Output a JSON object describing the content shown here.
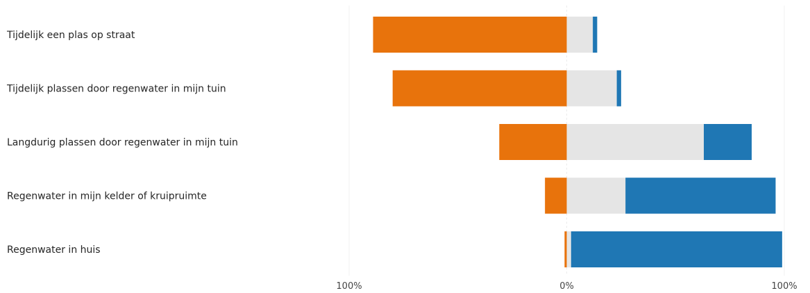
{
  "chart_data": {
    "type": "bar",
    "orientation": "horizontal",
    "stacked": "diverging",
    "categories": [
      "Tijdelijk een plas op straat",
      "Tijdelijk plassen door regenwater in mijn tuin",
      "Langdurig plassen door regenwater in mijn tuin",
      "Regenwater in mijn kelder of kruipruimte",
      "Regenwater in huis"
    ],
    "series": [
      {
        "color": "#e8730c",
        "values": [
          -89,
          -80,
          -31,
          -10,
          -1
        ]
      },
      {
        "color": "#e5e5e5",
        "values": [
          12,
          23,
          63,
          27,
          2
        ]
      },
      {
        "color": "#1f77b4",
        "values": [
          2,
          2,
          22,
          69,
          97
        ]
      }
    ],
    "xlim": [
      -100,
      100
    ],
    "x_tick_labels": [
      "100%",
      "0%",
      "100%"
    ],
    "grid": "vertical",
    "legend": "none"
  }
}
